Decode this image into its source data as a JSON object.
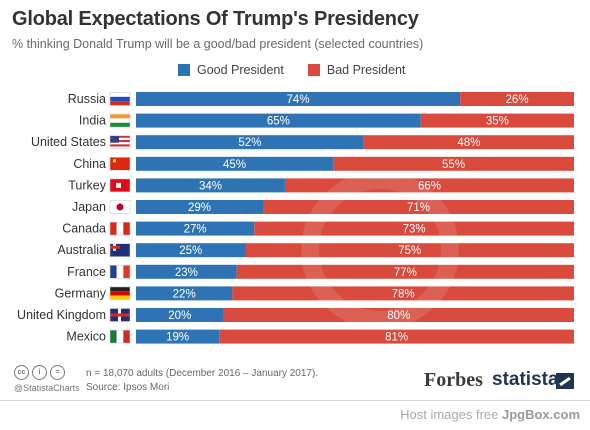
{
  "header": {
    "title": "Global Expectations Of Trump's Presidency",
    "subtitle": "% thinking Donald Trump will be a good/bad president (selected countries)"
  },
  "legend": {
    "good_label": "Good President",
    "bad_label": "Bad President"
  },
  "colors": {
    "good": "#2e74b5",
    "bad": "#d94a3d"
  },
  "chart_data": {
    "type": "bar",
    "orientation": "horizontal-stacked-100",
    "categories": [
      "Russia",
      "India",
      "United States",
      "China",
      "Turkey",
      "Japan",
      "Canada",
      "Australia",
      "France",
      "Germany",
      "United Kingdom",
      "Mexico"
    ],
    "series": [
      {
        "name": "Good President",
        "values": [
          74,
          65,
          52,
          45,
          34,
          29,
          27,
          25,
          23,
          22,
          20,
          19
        ]
      },
      {
        "name": "Bad President",
        "values": [
          26,
          35,
          48,
          55,
          66,
          71,
          73,
          75,
          77,
          78,
          80,
          81
        ]
      }
    ],
    "legend_position": "top",
    "grid": false
  },
  "footer": {
    "note": "n = 18,070 adults (December 2016 – January 2017).",
    "source": "Source: Ipsos Mori",
    "handle": "@StatistaCharts",
    "forbes": "Forbes",
    "statista": "statista"
  },
  "watermark": {
    "text": "Host images free ",
    "site": "JpgBox.com"
  }
}
